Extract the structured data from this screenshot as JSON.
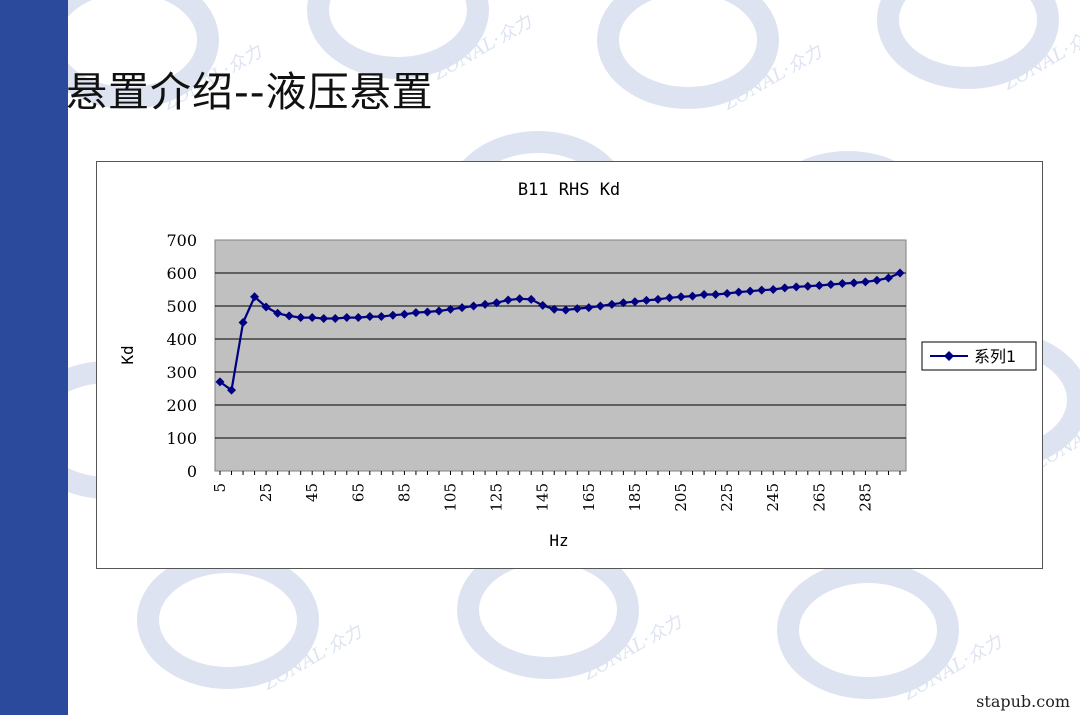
{
  "slide": {
    "title": "悬置介绍--液压悬置",
    "footer": "stapub.com",
    "watermark_text": "ZONAL·众力",
    "colors": {
      "sidebar": "#2b4a9c",
      "plot_area": "#c0c0c0",
      "series": "#000080",
      "watermark": "#dde3f1"
    }
  },
  "chart_data": {
    "type": "line",
    "title": "B11 RHS Kd",
    "xlabel": "Hz",
    "ylabel": "Kd",
    "ylim": [
      0,
      700
    ],
    "yticks": [
      0,
      100,
      200,
      300,
      400,
      500,
      600,
      700
    ],
    "grid": true,
    "legend_position": "right",
    "x": [
      5,
      10,
      15,
      20,
      25,
      30,
      35,
      40,
      45,
      50,
      55,
      60,
      65,
      70,
      75,
      80,
      85,
      90,
      95,
      100,
      105,
      110,
      115,
      120,
      125,
      130,
      135,
      140,
      145,
      150,
      155,
      160,
      165,
      170,
      175,
      180,
      185,
      190,
      195,
      200,
      205,
      210,
      215,
      220,
      225,
      230,
      235,
      240,
      245,
      250,
      255,
      260,
      265,
      270,
      275,
      280,
      285,
      290,
      295,
      300
    ],
    "x_tick_labels": [
      "5",
      "25",
      "45",
      "65",
      "85",
      "105",
      "125",
      "145",
      "165",
      "185",
      "205",
      "225",
      "245",
      "265",
      "285"
    ],
    "series": [
      {
        "name": "系列1",
        "marker": "diamond",
        "values": [
          270,
          245,
          450,
          528,
          497,
          478,
          470,
          465,
          465,
          462,
          462,
          465,
          465,
          468,
          468,
          472,
          475,
          480,
          482,
          485,
          490,
          495,
          500,
          505,
          510,
          518,
          522,
          520,
          502,
          490,
          488,
          492,
          495,
          500,
          505,
          510,
          513,
          517,
          520,
          525,
          528,
          530,
          535,
          535,
          538,
          542,
          545,
          548,
          550,
          555,
          558,
          560,
          562,
          565,
          568,
          570,
          573,
          578,
          585,
          600
        ]
      }
    ]
  }
}
